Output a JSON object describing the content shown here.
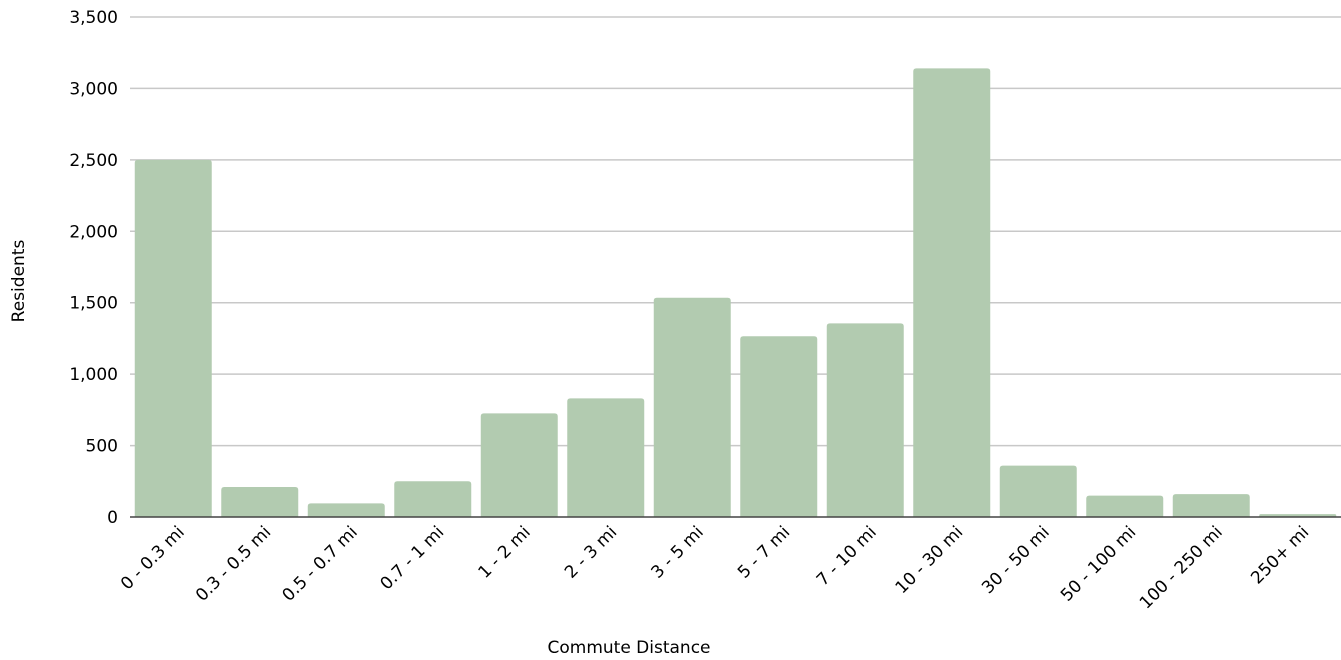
{
  "chart_data": {
    "type": "bar",
    "title": "",
    "xlabel": "Commute Distance",
    "ylabel": "Residents",
    "categories": [
      "0 - 0.3 mi",
      "0.3 - 0.5 mi",
      "0.5 - 0.7 mi",
      "0.7 - 1 mi",
      "1 - 2 mi",
      "2 - 3 mi",
      "3 - 5 mi",
      "5 - 7 mi",
      "7 - 10 mi",
      "10 - 30 mi",
      "30 - 50 mi",
      "50 - 100 mi",
      "100 - 250 mi",
      "250+ mi"
    ],
    "values": [
      2500,
      210,
      95,
      250,
      725,
      830,
      1535,
      1265,
      1355,
      3140,
      360,
      150,
      160,
      20
    ],
    "ylim": [
      0,
      3500
    ],
    "yticks": [
      0,
      500,
      1000,
      1500,
      2000,
      2500,
      3000,
      3500
    ],
    "ytick_labels": [
      "0",
      "500",
      "1,000",
      "1,500",
      "2,000",
      "2,500",
      "3,000",
      "3,500"
    ],
    "grid": true,
    "legend": "none",
    "colors": {
      "bar": "#b2cbb0",
      "grid": "#c8c8c8",
      "baseline": "#444444",
      "text": "#000000"
    }
  }
}
